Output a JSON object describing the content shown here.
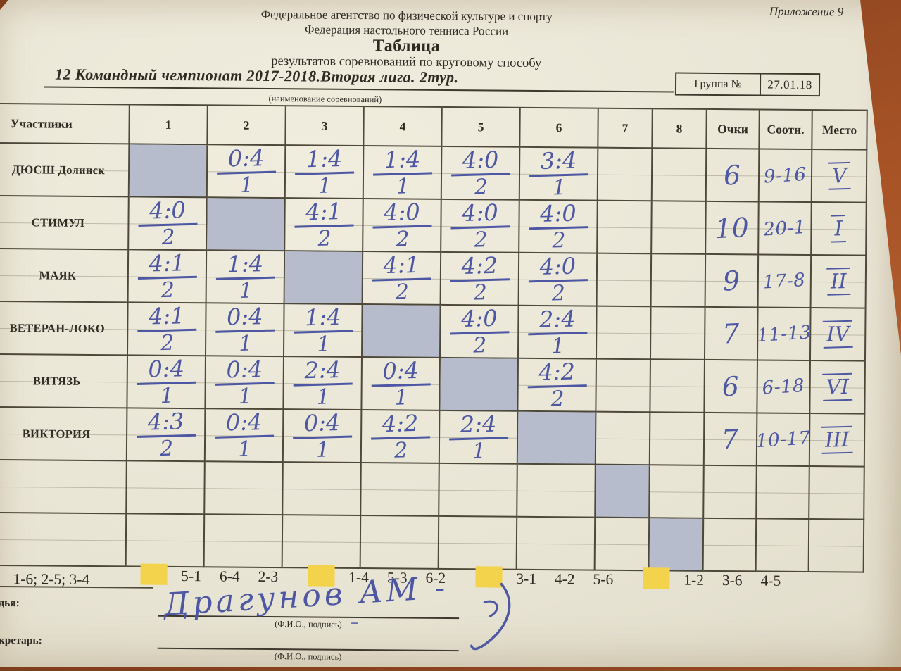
{
  "page": {
    "appendix": "Приложение 9",
    "org_line1": "Федеральное агентство по физической культуре и спорту",
    "org_line2": "Федерация настольного тенниса России",
    "title": "Таблица",
    "subtitle": "результатов соревнований по круговому способу",
    "competition_name": "12 Командный чемпионат 2017-2018.Вторая лига. 2тур.",
    "competition_caption": "(наименование соревнований)",
    "group_label": "Группа №",
    "date": "27.01.18"
  },
  "table": {
    "participants_header": "Участники",
    "round_headers": [
      "1",
      "2",
      "3",
      "4",
      "5",
      "6",
      "7",
      "8"
    ],
    "points_header": "Очки",
    "ratio_header": "Соотн.",
    "place_header": "Место",
    "rows": [
      {
        "name": "ДЮСШ Долинск",
        "cells": [
          "diag",
          {
            "s": "0:4",
            "p": "1"
          },
          {
            "s": "1:4",
            "p": "1"
          },
          {
            "s": "1:4",
            "p": "1"
          },
          {
            "s": "4:0",
            "p": "2"
          },
          {
            "s": "3:4",
            "p": "1"
          },
          "",
          ""
        ],
        "points": "6",
        "ratio": "9-16",
        "place": "V"
      },
      {
        "name": "СТИМУЛ",
        "cells": [
          {
            "s": "4:0",
            "p": "2"
          },
          "diag",
          {
            "s": "4:1",
            "p": "2"
          },
          {
            "s": "4:0",
            "p": "2"
          },
          {
            "s": "4:0",
            "p": "2"
          },
          {
            "s": "4:0",
            "p": "2"
          },
          "",
          ""
        ],
        "points": "10",
        "ratio": "20-1",
        "place": "I"
      },
      {
        "name": "МАЯК",
        "cells": [
          {
            "s": "4:1",
            "p": "2"
          },
          {
            "s": "1:4",
            "p": "1"
          },
          "diag",
          {
            "s": "4:1",
            "p": "2"
          },
          {
            "s": "4:2",
            "p": "2"
          },
          {
            "s": "4:0",
            "p": "2"
          },
          "",
          ""
        ],
        "points": "9",
        "ratio": "17-8",
        "place": "II"
      },
      {
        "name": "ВЕТЕРАН-ЛОКО",
        "cells": [
          {
            "s": "4:1",
            "p": "2"
          },
          {
            "s": "0:4",
            "p": "1"
          },
          {
            "s": "1:4",
            "p": "1"
          },
          "diag",
          {
            "s": "4:0",
            "p": "2"
          },
          {
            "s": "2:4",
            "p": "1"
          },
          "",
          ""
        ],
        "points": "7",
        "ratio": "11-13",
        "place": "IV"
      },
      {
        "name": "ВИТЯЗЬ",
        "cells": [
          {
            "s": "0:4",
            "p": "1"
          },
          {
            "s": "0:4",
            "p": "1"
          },
          {
            "s": "2:4",
            "p": "1"
          },
          {
            "s": "0:4",
            "p": "1"
          },
          "diag",
          {
            "s": "4:2",
            "p": "2"
          },
          "",
          ""
        ],
        "points": "6",
        "ratio": "6-18",
        "place": "VI"
      },
      {
        "name": "ВИКТОРИЯ",
        "cells": [
          {
            "s": "4:3",
            "p": "2"
          },
          {
            "s": "0:4",
            "p": "1"
          },
          {
            "s": "0:4",
            "p": "1"
          },
          {
            "s": "4:2",
            "p": "2"
          },
          {
            "s": "2:4",
            "p": "1"
          },
          "diag",
          "",
          ""
        ],
        "points": "7",
        "ratio": "10-17",
        "place": "III"
      },
      {
        "name": "",
        "cells": [
          "",
          "",
          "",
          "",
          "",
          "",
          "diag",
          ""
        ],
        "points": "",
        "ratio": "",
        "place": ""
      },
      {
        "name": "",
        "cells": [
          "",
          "",
          "",
          "",
          "",
          "",
          "",
          "diag"
        ],
        "points": "",
        "ratio": "",
        "place": ""
      }
    ]
  },
  "schedule": {
    "tours_label": "1-6; 2-5; 3-4",
    "groups": [
      {
        "pairs": [
          "5-1",
          "6-4",
          "2-3"
        ]
      },
      {
        "pairs": [
          "1-4",
          "5-3",
          "6-2"
        ]
      },
      {
        "pairs": [
          "3-1",
          "4-2",
          "5-6"
        ]
      },
      {
        "pairs": [
          "1-2",
          "3-6",
          "4-5"
        ]
      }
    ]
  },
  "footer": {
    "judge_label": "дья:",
    "secretary_label": "кретарь:",
    "signature": "Драгунов АМ -",
    "signature_dash": "–",
    "fio_caption": "(Ф.И.О., подпись)"
  },
  "colors": {
    "background": "#a85326",
    "paper": "#e9e5d5",
    "diagonal_cell": "#b6bccb",
    "highlight": "#f2d34b",
    "ink_blue": "#4d57a3",
    "print": "#2f2a22",
    "line": "#4e483a"
  }
}
